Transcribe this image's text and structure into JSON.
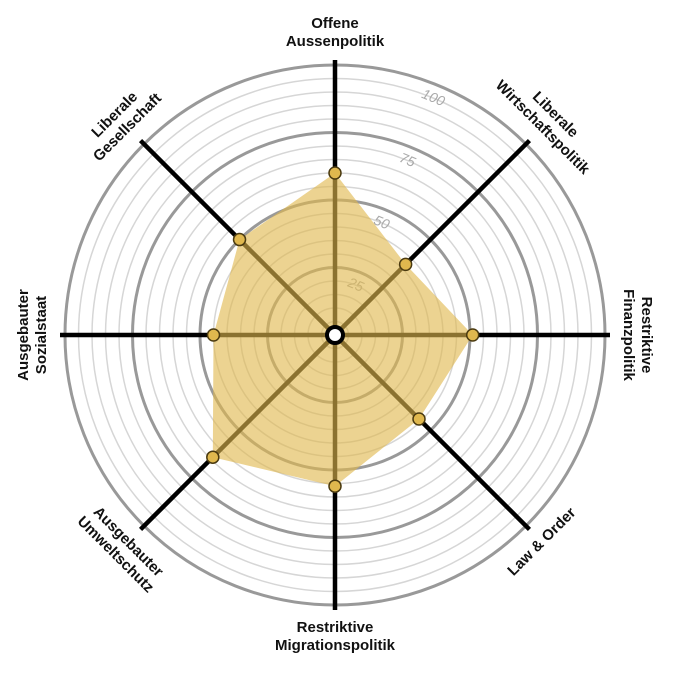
{
  "chart_data": {
    "type": "radar",
    "categories": [
      [
        "Offene",
        "Aussenpolitik"
      ],
      [
        "Liberale",
        "Wirtschaftspolitik"
      ],
      [
        "Restriktive",
        "Finanzpolitik"
      ],
      [
        "Law & Order"
      ],
      [
        "Restriktive",
        "Migrationspolitik"
      ],
      [
        "Ausgebauter",
        "Umweltschutz"
      ],
      [
        "Ausgebauter",
        "Sozialstaat"
      ],
      [
        "Liberale",
        "Gesellschaft"
      ]
    ],
    "series": [
      {
        "color": "#e0b84e",
        "values": [
          60,
          37,
          51,
          44,
          56,
          64,
          45,
          50
        ]
      }
    ],
    "ylim": [
      0,
      100
    ],
    "yticks": [
      25,
      50,
      75,
      100
    ],
    "grid": true
  }
}
